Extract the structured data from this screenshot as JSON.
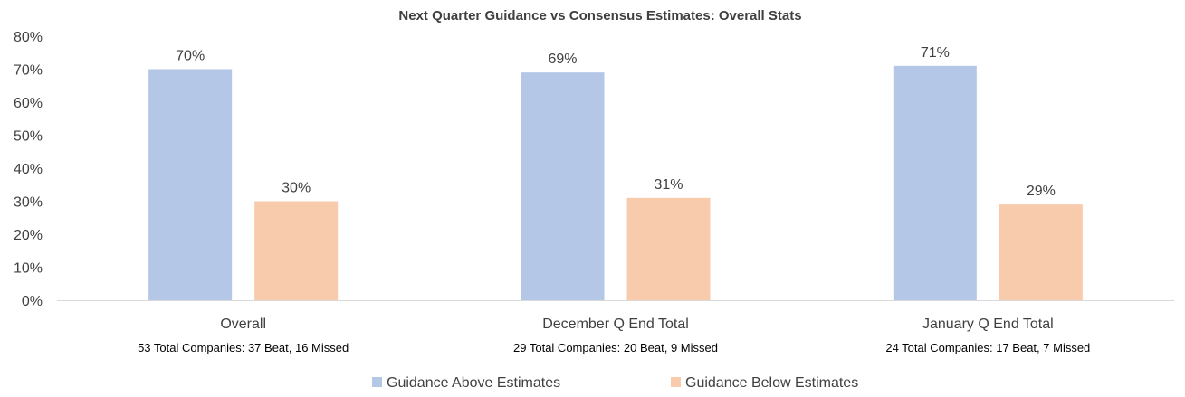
{
  "chart_data": {
    "type": "bar",
    "title": "Next Quarter Guidance vs Consensus Estimates: Overall Stats",
    "categories": [
      "Overall",
      "December Q End Total",
      "January Q End Total"
    ],
    "category_notes": [
      "53 Total Companies: 37 Beat, 16 Missed",
      "29 Total Companies: 20 Beat, 9 Missed",
      "24 Total Companies: 17 Beat, 7 Missed"
    ],
    "series": [
      {
        "name": "Guidance Above Estimates",
        "values": [
          70,
          69,
          71
        ],
        "labels": [
          "70%",
          "69%",
          "71%"
        ],
        "color": "#b4c7e7"
      },
      {
        "name": "Guidance Below Estimates",
        "values": [
          30,
          31,
          29
        ],
        "labels": [
          "30%",
          "31%",
          "29%"
        ],
        "color": "#f8cbad"
      }
    ],
    "y_ticks": [
      "0%",
      "10%",
      "20%",
      "30%",
      "40%",
      "50%",
      "60%",
      "70%",
      "80%"
    ],
    "ylim": [
      0,
      80
    ],
    "xlabel": "",
    "ylabel": "",
    "grid": false,
    "legend_position": "bottom"
  }
}
